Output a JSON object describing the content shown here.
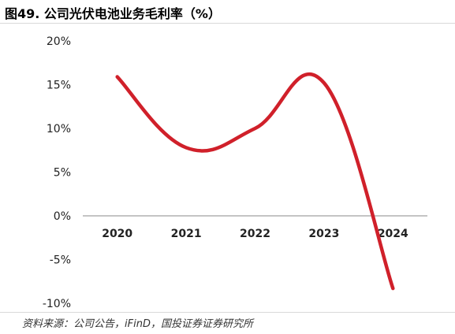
{
  "title": "图49. 公司光伏电池业务毛利率（%）",
  "source": "资料来源：公司公告，iFinD，国投证券证券研究所",
  "chart_data": {
    "type": "line",
    "title": "图49. 公司光伏电池业务毛利率（%）",
    "categories": [
      "2020",
      "2021",
      "2022",
      "2023",
      "2024"
    ],
    "values": [
      15.9,
      7.8,
      10.0,
      15.2,
      -8.3
    ],
    "yticks": [
      "20%",
      "15%",
      "10%",
      "5%",
      "0%",
      "-5%",
      "-10%"
    ],
    "ylim": [
      -10,
      20
    ],
    "grid": false,
    "line_color": "#d0202a"
  }
}
